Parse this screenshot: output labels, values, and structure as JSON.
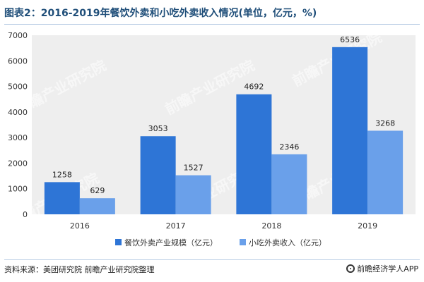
{
  "header": {
    "title": "图表2：2016-2019年餐饮外卖和小吃外卖收入情况(单位，亿元，%)"
  },
  "footer": {
    "source": "资料来源：美团研究院   前瞻产业研究院整理",
    "brand": "前瞻经济学人APP",
    "brand_icon": "qianzhan-logo-icon"
  },
  "watermark": {
    "text": "前瞻产业研究院"
  },
  "chart_data": {
    "type": "bar",
    "title": "图表2：2016-2019年餐饮外卖和小吃外卖收入情况(单位，亿元，%)",
    "categories": [
      "2016",
      "2017",
      "2018",
      "2019"
    ],
    "series": [
      {
        "name": "餐饮外卖产业规模（亿元）",
        "values": [
          1258,
          3053,
          4692,
          6536
        ],
        "color": "#2e75d6"
      },
      {
        "name": "小吃外卖收入（亿元）",
        "values": [
          629,
          1527,
          2346,
          3268
        ],
        "color": "#6aa0ea"
      }
    ],
    "yticks": [
      0,
      1000,
      2000,
      3000,
      4000,
      5000,
      6000,
      7000
    ],
    "ylim": [
      0,
      7000
    ],
    "xlabel": "",
    "ylabel": "",
    "grid": false,
    "legend_position": "bottom-center",
    "plot_background": "#eeeeee",
    "data_labels": true
  }
}
